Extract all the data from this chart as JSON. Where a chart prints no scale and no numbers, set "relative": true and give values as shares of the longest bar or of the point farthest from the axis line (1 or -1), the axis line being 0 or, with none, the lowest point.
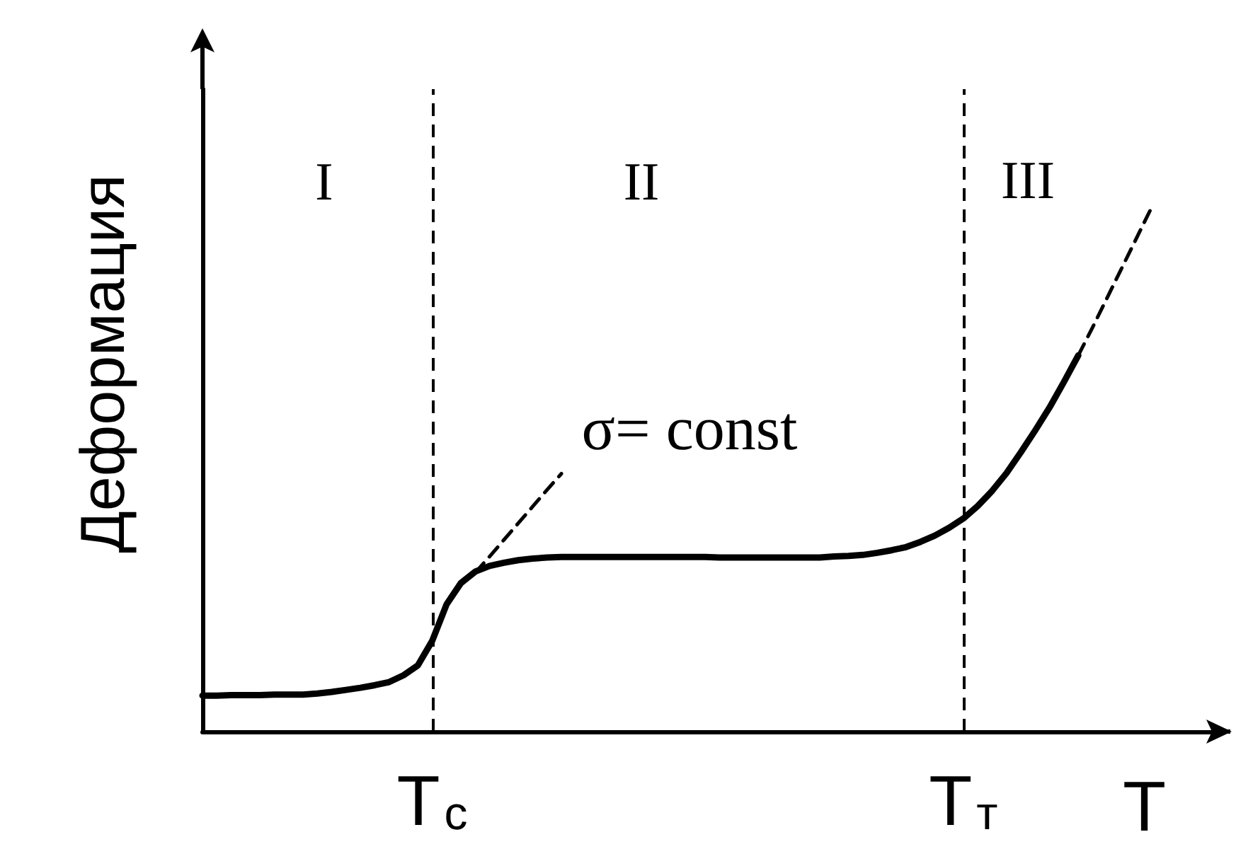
{
  "chart_data": {
    "type": "line",
    "relative": true,
    "ylabel": "Деформация",
    "xlabel": "T",
    "marker": "none",
    "line_style": "solid",
    "tick_labels": "x",
    "categories": [
      null,
      null,
      null,
      null,
      null,
      null,
      null,
      null,
      null,
      null,
      null,
      null,
      null,
      null,
      null,
      null,
      "T$_{с}$",
      null,
      null,
      null,
      null,
      null,
      null,
      null,
      null,
      null,
      null,
      null,
      null,
      null,
      null,
      null,
      null,
      null,
      null,
      null,
      null,
      null,
      null,
      null,
      null,
      null,
      null,
      null,
      null,
      null,
      null,
      null,
      null,
      null,
      null,
      null,
      null,
      "T$_{т}$",
      null,
      null,
      null,
      null,
      null,
      null,
      null,
      null,
      null,
      null,
      null,
      null,
      null,
      null,
      null,
      null,
      null,
      null
    ],
    "series": [
      {
        "color": "#000000",
        "values": [
          0.069,
          0.069,
          0.07,
          0.07,
          0.07,
          0.071,
          0.071,
          0.071,
          0.073,
          0.076,
          0.08,
          0.084,
          0.089,
          0.095,
          0.108,
          0.127,
          0.174,
          0.244,
          0.285,
          0.307,
          0.318,
          0.324,
          0.329,
          0.332,
          0.334,
          0.335,
          0.335,
          0.335,
          0.335,
          0.335,
          0.335,
          0.335,
          0.335,
          0.335,
          0.335,
          0.335,
          0.334,
          0.334,
          0.334,
          0.334,
          0.334,
          0.334,
          0.334,
          0.334,
          0.336,
          0.337,
          0.339,
          0.343,
          0.348,
          0.354,
          0.364,
          0.376,
          0.391,
          0.409,
          0.433,
          0.462,
          0.496,
          0.536,
          0.578,
          0.622,
          0.671,
          0.722,
          null,
          null,
          null,
          null,
          null,
          null,
          null,
          null,
          null,
          null
        ]
      },
      {
        "color": "#000000",
        "line_style": "dashed",
        "values": [
          null,
          null,
          null,
          null,
          null,
          null,
          null,
          null,
          null,
          null,
          null,
          null,
          null,
          null,
          null,
          null,
          null,
          null,
          null,
          0.305,
          0.336,
          0.368,
          0.4,
          0.432,
          0.464,
          0.495,
          null,
          null,
          null,
          null,
          null,
          null,
          null,
          null,
          null,
          null,
          null,
          null,
          null,
          null,
          null,
          null,
          null,
          null,
          null,
          null,
          null,
          null,
          null,
          null,
          null,
          null,
          null,
          null,
          null,
          null,
          null,
          null,
          null,
          null,
          null,
          null,
          null,
          null,
          null,
          null,
          null,
          null,
          null,
          null,
          null,
          null
        ]
      },
      {
        "color": "#000000",
        "line_style": "dashed",
        "values": [
          null,
          null,
          null,
          null,
          null,
          null,
          null,
          null,
          null,
          null,
          null,
          null,
          null,
          null,
          null,
          null,
          null,
          null,
          null,
          null,
          null,
          null,
          null,
          null,
          null,
          null,
          null,
          null,
          null,
          null,
          null,
          null,
          null,
          null,
          null,
          null,
          null,
          null,
          null,
          null,
          null,
          null,
          null,
          null,
          null,
          null,
          null,
          null,
          null,
          null,
          null,
          null,
          null,
          null,
          null,
          null,
          null,
          null,
          null,
          null,
          null,
          0.722,
          0.776,
          0.832,
          0.888,
          0.944,
          1,
          null,
          null,
          null,
          null,
          null
        ]
      }
    ],
    "ref_lines": [
      {
        "axis": "x",
        "value": "T$_{с}$",
        "color": "#000000",
        "line_style": "dashed"
      },
      {
        "axis": "x",
        "value": "T$_{т}$",
        "color": "#000000",
        "line_style": "dashed"
      }
    ],
    "annotations": [
      "I",
      "II",
      "III",
      "σ= const"
    ]
  }
}
